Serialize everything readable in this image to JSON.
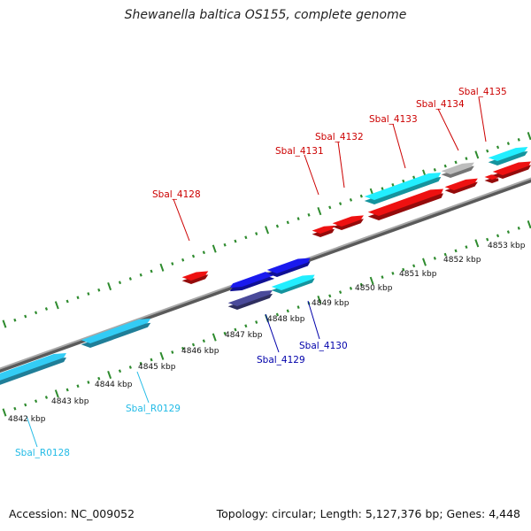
{
  "title": "Shewanella baltica OS155, complete genome",
  "accession": "Accession: NC_009052",
  "summary": "Topology: circular; Length: 5,127,376 bp; Genes: 4,448",
  "colors": {
    "backbone": "#8a8a8a",
    "tick": "#2e8b2e",
    "gene_red": "#ee1111",
    "gene_red_label": "#cc0000",
    "gene_blue": "#1a1aee",
    "gene_blue_label": "#0000aa",
    "gene_cyan": "#22eeff",
    "rna_blue": "#33ccf5",
    "rna_label": "#22bbe6",
    "gene_gray": "#bdbdbd",
    "gene_navy": "#4a4a9a"
  },
  "kbp_labels": [
    "4842 kbp",
    "4843 kbp",
    "4844 kbp",
    "4845 kbp",
    "4846 kbp",
    "4847 kbp",
    "4848 kbp",
    "4849 kbp",
    "4850 kbp",
    "4851 kbp",
    "4852 kbp",
    "4853 kbp"
  ],
  "gene_labels": [
    {
      "text": "Sbal_4128",
      "color": "gene_red_label"
    },
    {
      "text": "Sbal_4131",
      "color": "gene_red_label"
    },
    {
      "text": "Sbal_4132",
      "color": "gene_red_label"
    },
    {
      "text": "Sbal_4133",
      "color": "gene_red_label"
    },
    {
      "text": "Sbal_4134",
      "color": "gene_red_label"
    },
    {
      "text": "Sbal_4135",
      "color": "gene_red_label"
    },
    {
      "text": "Sbal_4129",
      "color": "gene_blue_label"
    },
    {
      "text": "Sbal_4130",
      "color": "gene_blue_label"
    },
    {
      "text": "Sbal_R0129",
      "color": "rna_label"
    },
    {
      "text": "Sbal_R0128",
      "color": "rna_label"
    }
  ]
}
